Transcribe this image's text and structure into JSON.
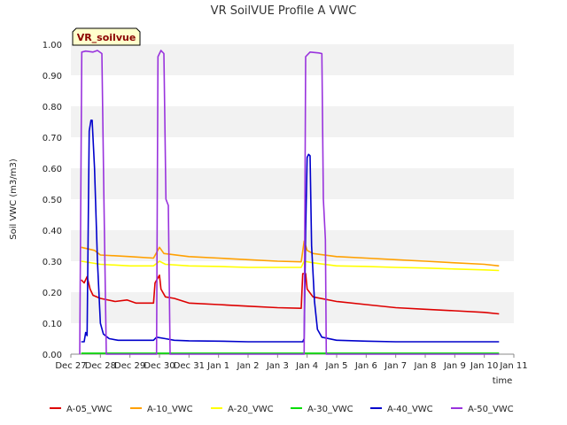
{
  "chart_data": {
    "type": "line",
    "title": "VR SoilVUE Profile A VWC",
    "xlabel": "time",
    "ylabel": "Soil VWC (m3/m3)",
    "ylim": [
      0,
      1.0
    ],
    "xlim": [
      0,
      15
    ],
    "grid": "horizontal bands",
    "legend_position": "bottom",
    "annotation": "VR_soilvue",
    "y_ticks": [
      "0.00",
      "0.10",
      "0.20",
      "0.30",
      "0.40",
      "0.50",
      "0.60",
      "0.70",
      "0.80",
      "0.90",
      "1.00"
    ],
    "x_ticks": [
      {
        "label": "Dec 27",
        "x": 0
      },
      {
        "label": "Dec 28",
        "x": 1
      },
      {
        "label": "Dec 29",
        "x": 2
      },
      {
        "label": "Dec 30",
        "x": 3
      },
      {
        "label": "Dec 31",
        "x": 4
      },
      {
        "label": "Jan 1",
        "x": 5
      },
      {
        "label": "Jan 2",
        "x": 6
      },
      {
        "label": "Jan 3",
        "x": 7
      },
      {
        "label": "Jan 4",
        "x": 8
      },
      {
        "label": "Jan 5",
        "x": 9
      },
      {
        "label": "Jan 6",
        "x": 10
      },
      {
        "label": "Jan 7",
        "x": 11
      },
      {
        "label": "Jan 8",
        "x": 12
      },
      {
        "label": "Jan 9",
        "x": 13
      },
      {
        "label": "Jan 10",
        "x": 14
      },
      {
        "label": "Jan 11",
        "x": 15
      }
    ],
    "series": [
      {
        "name": "A-05_VWC",
        "color": "#dd0000",
        "points": [
          [
            0.35,
            0.24
          ],
          [
            0.45,
            0.23
          ],
          [
            0.55,
            0.25
          ],
          [
            0.65,
            0.21
          ],
          [
            0.75,
            0.19
          ],
          [
            1.0,
            0.18
          ],
          [
            1.5,
            0.17
          ],
          [
            1.9,
            0.175
          ],
          [
            2.2,
            0.165
          ],
          [
            2.8,
            0.165
          ],
          [
            2.85,
            0.23
          ],
          [
            3.0,
            0.255
          ],
          [
            3.05,
            0.21
          ],
          [
            3.2,
            0.185
          ],
          [
            3.5,
            0.18
          ],
          [
            4.0,
            0.165
          ],
          [
            5.0,
            0.16
          ],
          [
            6.0,
            0.155
          ],
          [
            7.0,
            0.15
          ],
          [
            7.8,
            0.148
          ],
          [
            7.85,
            0.26
          ],
          [
            7.95,
            0.26
          ],
          [
            8.0,
            0.21
          ],
          [
            8.2,
            0.185
          ],
          [
            9.0,
            0.17
          ],
          [
            10.0,
            0.16
          ],
          [
            11.0,
            0.15
          ],
          [
            12.0,
            0.145
          ],
          [
            13.0,
            0.14
          ],
          [
            14.0,
            0.135
          ],
          [
            14.5,
            0.13
          ]
        ]
      },
      {
        "name": "A-10_VWC",
        "color": "#ffa000",
        "points": [
          [
            0.35,
            0.345
          ],
          [
            0.8,
            0.335
          ],
          [
            1.0,
            0.32
          ],
          [
            2.0,
            0.315
          ],
          [
            2.8,
            0.31
          ],
          [
            3.0,
            0.345
          ],
          [
            3.15,
            0.325
          ],
          [
            4.0,
            0.315
          ],
          [
            5.0,
            0.31
          ],
          [
            6.0,
            0.305
          ],
          [
            7.0,
            0.3
          ],
          [
            7.8,
            0.298
          ],
          [
            7.9,
            0.365
          ],
          [
            8.0,
            0.335
          ],
          [
            8.2,
            0.325
          ],
          [
            9.0,
            0.315
          ],
          [
            10.0,
            0.31
          ],
          [
            11.0,
            0.305
          ],
          [
            12.0,
            0.3
          ],
          [
            13.0,
            0.295
          ],
          [
            14.0,
            0.29
          ],
          [
            14.5,
            0.285
          ]
        ]
      },
      {
        "name": "A-20_VWC",
        "color": "#ffff00",
        "points": [
          [
            0.35,
            0.3
          ],
          [
            1.0,
            0.29
          ],
          [
            2.0,
            0.285
          ],
          [
            2.8,
            0.285
          ],
          [
            3.0,
            0.3
          ],
          [
            3.2,
            0.29
          ],
          [
            4.0,
            0.285
          ],
          [
            5.0,
            0.283
          ],
          [
            6.0,
            0.28
          ],
          [
            7.0,
            0.28
          ],
          [
            7.8,
            0.28
          ],
          [
            7.9,
            0.3
          ],
          [
            8.2,
            0.295
          ],
          [
            9.0,
            0.285
          ],
          [
            10.0,
            0.283
          ],
          [
            11.0,
            0.28
          ],
          [
            12.0,
            0.278
          ],
          [
            13.0,
            0.275
          ],
          [
            14.0,
            0.272
          ],
          [
            14.5,
            0.27
          ]
        ]
      },
      {
        "name": "A-30_VWC",
        "color": "#00dd00",
        "points": [
          [
            0.35,
            0.003
          ],
          [
            14.5,
            0.003
          ]
        ]
      },
      {
        "name": "A-40_VWC",
        "color": "#0000cc",
        "points": [
          [
            0.35,
            0.04
          ],
          [
            0.45,
            0.04
          ],
          [
            0.5,
            0.07
          ],
          [
            0.55,
            0.06
          ],
          [
            0.62,
            0.72
          ],
          [
            0.68,
            0.755
          ],
          [
            0.72,
            0.755
          ],
          [
            0.8,
            0.6
          ],
          [
            0.9,
            0.3
          ],
          [
            1.0,
            0.1
          ],
          [
            1.1,
            0.065
          ],
          [
            1.3,
            0.05
          ],
          [
            1.6,
            0.045
          ],
          [
            2.0,
            0.045
          ],
          [
            2.8,
            0.045
          ],
          [
            2.9,
            0.055
          ],
          [
            3.2,
            0.05
          ],
          [
            3.5,
            0.045
          ],
          [
            4.0,
            0.043
          ],
          [
            5.0,
            0.042
          ],
          [
            6.0,
            0.04
          ],
          [
            7.0,
            0.04
          ],
          [
            7.85,
            0.04
          ],
          [
            7.9,
            0.05
          ],
          [
            7.95,
            0.4
          ],
          [
            8.0,
            0.635
          ],
          [
            8.05,
            0.645
          ],
          [
            8.1,
            0.64
          ],
          [
            8.15,
            0.35
          ],
          [
            8.25,
            0.17
          ],
          [
            8.35,
            0.08
          ],
          [
            8.5,
            0.055
          ],
          [
            9.0,
            0.045
          ],
          [
            10.0,
            0.042
          ],
          [
            11.0,
            0.04
          ],
          [
            12.0,
            0.04
          ],
          [
            13.0,
            0.04
          ],
          [
            14.0,
            0.04
          ],
          [
            14.5,
            0.04
          ]
        ]
      },
      {
        "name": "A-50_VWC",
        "color": "#9933dd",
        "points": [
          [
            0.3,
            0.0
          ],
          [
            0.37,
            0.975
          ],
          [
            0.5,
            0.978
          ],
          [
            0.75,
            0.975
          ],
          [
            0.9,
            0.98
          ],
          [
            1.05,
            0.97
          ],
          [
            1.12,
            0.5
          ],
          [
            1.2,
            0.0
          ],
          [
            2.8,
            0.0
          ],
          [
            2.9,
            0.0
          ],
          [
            2.95,
            0.96
          ],
          [
            3.05,
            0.98
          ],
          [
            3.15,
            0.97
          ],
          [
            3.22,
            0.5
          ],
          [
            3.3,
            0.48
          ],
          [
            3.36,
            0.0
          ],
          [
            7.8,
            0.0
          ],
          [
            7.9,
            0.0
          ],
          [
            7.95,
            0.96
          ],
          [
            8.1,
            0.975
          ],
          [
            8.4,
            0.972
          ],
          [
            8.5,
            0.97
          ],
          [
            8.55,
            0.5
          ],
          [
            8.62,
            0.37
          ],
          [
            8.65,
            0.0
          ],
          [
            14.5,
            0.0
          ]
        ]
      }
    ]
  }
}
